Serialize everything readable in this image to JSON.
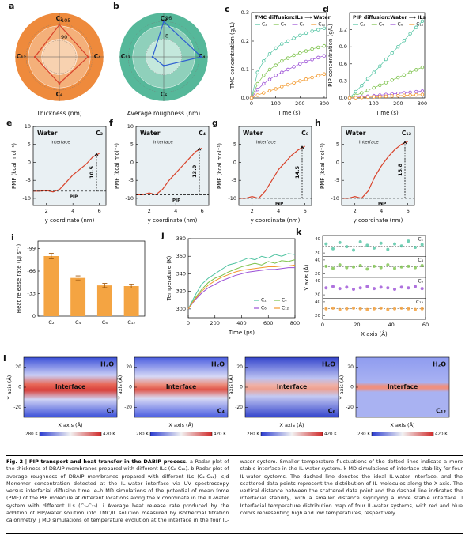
{
  "chart_data": [
    {
      "type": "radar",
      "panel_label": "a",
      "axes": [
        "C₂",
        "C₄",
        "C₆",
        "C₁₂"
      ],
      "rlim": [
        75,
        115
      ],
      "rticks": [
        90,
        105
      ],
      "xlabel": "Thickness (nm)",
      "ring_colors": [
        "#ee8a3c",
        "#f4b07a",
        "#f8d2b0"
      ],
      "series": [
        {
          "color": "#d9432b",
          "values": [
            104,
            101,
            99,
            97
          ]
        }
      ]
    },
    {
      "type": "radar",
      "panel_label": "b",
      "axes": [
        "C₂",
        "C₄",
        "C₆",
        "C₁₂"
      ],
      "rlim": [
        0,
        20
      ],
      "rticks": [
        8,
        16
      ],
      "xlabel": "Average roughness (nm)",
      "ring_colors": [
        "#56b89a",
        "#8fd0bb",
        "#c4e8dc"
      ],
      "series": [
        {
          "color": "#2f5fd0",
          "values": [
            16,
            17,
            4,
            5
          ]
        }
      ]
    },
    {
      "type": "line",
      "panel_label": "c",
      "title": "TMC diffusion:ILs ⟶ Water",
      "xlabel": "Time (s)",
      "ylabel": "TMC concentration (g/L)",
      "markers": true,
      "legend": "top",
      "xlim": [
        0,
        310
      ],
      "ylim": [
        0,
        0.3
      ],
      "xticks": [
        0,
        100,
        200,
        300
      ],
      "yticks": [
        {
          "value": 0,
          "label": "0.0"
        },
        0.1,
        0.2,
        0.3
      ],
      "x": [
        0,
        25,
        50,
        75,
        100,
        125,
        150,
        175,
        200,
        225,
        250,
        275,
        300
      ],
      "series": [
        {
          "name": "C₂",
          "color": "#4fc3a1",
          "values": [
            0,
            0.09,
            0.13,
            0.155,
            0.175,
            0.19,
            0.2,
            0.21,
            0.22,
            0.228,
            0.235,
            0.24,
            0.245
          ]
        },
        {
          "name": "C₄",
          "color": "#7cc24a",
          "values": [
            0,
            0.05,
            0.08,
            0.1,
            0.115,
            0.13,
            0.14,
            0.15,
            0.158,
            0.165,
            0.172,
            0.178,
            0.183
          ]
        },
        {
          "name": "C₆",
          "color": "#9b4fd6",
          "values": [
            0,
            0.03,
            0.05,
            0.065,
            0.08,
            0.09,
            0.1,
            0.11,
            0.12,
            0.128,
            0.135,
            0.142,
            0.148
          ]
        },
        {
          "name": "C₁₂",
          "color": "#f39a2f",
          "values": [
            0,
            0.01,
            0.018,
            0.025,
            0.032,
            0.04,
            0.047,
            0.053,
            0.06,
            0.066,
            0.072,
            0.078,
            0.084
          ]
        }
      ]
    },
    {
      "type": "line",
      "panel_label": "d",
      "title": "PIP diffusion:Water ⟶ ILs",
      "xlabel": "Time (s)",
      "ylabel": "PIP concentration (g/L)",
      "markers": true,
      "legend": "top",
      "xlim": [
        0,
        310
      ],
      "ylim": [
        0,
        1.5
      ],
      "xticks": [
        0,
        100,
        200,
        300
      ],
      "yticks": [
        {
          "value": 0,
          "label": "0.0"
        },
        0.3,
        0.6,
        0.9,
        1.2
      ],
      "x": [
        0,
        25,
        50,
        75,
        100,
        125,
        150,
        175,
        200,
        225,
        250,
        275,
        300
      ],
      "series": [
        {
          "name": "C₂",
          "color": "#4fc3a1",
          "values": [
            0,
            0.11,
            0.22,
            0.34,
            0.45,
            0.56,
            0.68,
            0.79,
            0.9,
            1.01,
            1.13,
            1.24,
            1.35
          ]
        },
        {
          "name": "C₄",
          "color": "#7cc24a",
          "values": [
            0,
            0.045,
            0.09,
            0.135,
            0.18,
            0.225,
            0.27,
            0.315,
            0.36,
            0.405,
            0.45,
            0.495,
            0.54
          ]
        },
        {
          "name": "C₆",
          "color": "#9b4fd6",
          "values": [
            0,
            0.01,
            0.02,
            0.03,
            0.04,
            0.05,
            0.06,
            0.07,
            0.08,
            0.09,
            0.1,
            0.11,
            0.12
          ]
        },
        {
          "name": "C₁₂",
          "color": "#f39a2f",
          "values": [
            0,
            0.005,
            0.01,
            0.015,
            0.02,
            0.025,
            0.03,
            0.035,
            0.04,
            0.045,
            0.05,
            0.055,
            0.06
          ]
        }
      ]
    },
    {
      "type": "pmf",
      "panel_label": "e",
      "label": "C₂",
      "water": "Water",
      "interface": "Interface",
      "pip": "PIP",
      "xlabel": "y coordinate (nm)",
      "ylabel": "PMF (kcal mol⁻¹)",
      "color": "#d9432b",
      "xlim": [
        1,
        6.5
      ],
      "ylim": [
        -12,
        10
      ],
      "xticks": [
        2,
        4,
        6
      ],
      "yticks": [
        -10,
        -5,
        0,
        5,
        10
      ],
      "baseline": -8,
      "barrier": 10.5,
      "x": [
        1,
        1.5,
        2,
        2.5,
        3,
        3.5,
        4,
        4.5,
        5,
        5.5,
        6
      ],
      "values": [
        -8,
        -8,
        -7.8,
        -8.2,
        -7.5,
        -5.5,
        -3.5,
        -2,
        -0.5,
        1.5,
        2.5
      ]
    },
    {
      "type": "pmf",
      "panel_label": "f",
      "label": "C₄",
      "water": "Water",
      "interface": "Interface",
      "pip": "PIP",
      "xlabel": "y coordinate (nm)",
      "ylabel": "PMF (kcal mol⁻¹)",
      "color": "#d9432b",
      "xlim": [
        1,
        6.5
      ],
      "ylim": [
        -12,
        10
      ],
      "xticks": [
        2,
        4,
        6
      ],
      "yticks": [
        -10,
        -5,
        0,
        5,
        10
      ],
      "baseline": -9,
      "barrier": 13,
      "barrier_label": "13.0",
      "x": [
        1,
        1.5,
        2,
        2.5,
        3,
        3.5,
        4,
        4.5,
        5,
        5.5,
        6
      ],
      "values": [
        -9,
        -9,
        -8.5,
        -9,
        -7.5,
        -5,
        -3,
        -1,
        1,
        3,
        4
      ]
    },
    {
      "type": "pmf",
      "panel_label": "g",
      "label": "C₆",
      "water": "Water",
      "interface": "Interface",
      "pip": "PIP",
      "xlabel": "y coordinate (nm)",
      "ylabel": "PMF (kcal mol⁻¹)",
      "color": "#d9432b",
      "xlim": [
        1,
        6.5
      ],
      "ylim": [
        -12,
        10
      ],
      "xticks": [
        2,
        4,
        6
      ],
      "yticks": [
        -10,
        -5,
        0,
        5
      ],
      "baseline": -10,
      "barrier": 14.5,
      "x": [
        1,
        1.5,
        2,
        2.5,
        3,
        3.5,
        4,
        4.5,
        5,
        5.5,
        6
      ],
      "values": [
        -10,
        -10,
        -9.5,
        -10,
        -8,
        -5,
        -2,
        0,
        2,
        3.5,
        4.5
      ]
    },
    {
      "type": "pmf",
      "panel_label": "h",
      "label": "C₁₂",
      "water": "Water",
      "interface": "Interface",
      "pip": "PIP",
      "xlabel": "y coordinate (nm)",
      "ylabel": "PMF (kcal mol⁻¹)",
      "color": "#d9432b",
      "xlim": [
        1,
        6.5
      ],
      "ylim": [
        -12,
        10
      ],
      "xticks": [
        2,
        4,
        6
      ],
      "yticks": [
        -10,
        -5,
        0,
        5
      ],
      "baseline": -10,
      "barrier": 15.8,
      "x": [
        1,
        1.5,
        2,
        2.5,
        3,
        3.5,
        4,
        4.5,
        5,
        5.5,
        6
      ],
      "values": [
        -10,
        -10,
        -9.5,
        -10,
        -8,
        -4,
        -1,
        1.5,
        3.5,
        5,
        5.8
      ]
    },
    {
      "type": "bar",
      "panel_label": "i",
      "ylabel": "Heat release rate (μJ s⁻¹)",
      "color": "#f4a442",
      "categories": [
        "C₂",
        "C₄",
        "C₆",
        "C₁₂"
      ],
      "values": [
        -88,
        -56,
        -45,
        -44
      ],
      "errors": [
        4,
        3,
        3,
        3
      ],
      "ylim": [
        0,
        -110
      ],
      "yticks": [
        0,
        -33,
        -66,
        -99
      ]
    },
    {
      "type": "line",
      "panel_label": "j",
      "xlabel": "Time (ps)",
      "ylabel": "Temperature (K)",
      "markers": false,
      "legend": "lower right",
      "xlim": [
        0,
        800
      ],
      "ylim": [
        290,
        380
      ],
      "xticks": [
        0,
        200,
        400,
        600,
        800
      ],
      "yticks": [
        300,
        320,
        340,
        360,
        380
      ],
      "x": [
        0,
        50,
        100,
        150,
        200,
        250,
        300,
        350,
        400,
        450,
        500,
        550,
        600,
        650,
        700,
        750,
        800
      ],
      "series": [
        {
          "name": "C₂",
          "color": "#4fc3a1",
          "values": [
            300,
            315,
            328,
            335,
            340,
            345,
            350,
            352,
            355,
            358,
            356,
            360,
            358,
            362,
            360,
            363,
            362
          ]
        },
        {
          "name": "C₄",
          "color": "#7cc24a",
          "values": [
            300,
            312,
            322,
            330,
            335,
            338,
            342,
            345,
            348,
            350,
            352,
            350,
            354,
            352,
            355,
            354,
            356
          ]
        },
        {
          "name": "C₆",
          "color": "#9b4fd6",
          "values": [
            300,
            310,
            318,
            324,
            328,
            332,
            335,
            338,
            340,
            342,
            343,
            344,
            345,
            345,
            346,
            347,
            347
          ]
        },
        {
          "name": "C₁₂",
          "color": "#f39a2f",
          "values": [
            300,
            311,
            320,
            327,
            332,
            336,
            339,
            342,
            344,
            345,
            346,
            347,
            348,
            348,
            349,
            349,
            350
          ]
        }
      ]
    },
    {
      "type": "stacked_scatter",
      "panel_label": "k",
      "xlabel": "X axis (Å)",
      "ylabel": "Y axis (Å)",
      "xlim": [
        0,
        60
      ],
      "xticks": [
        0,
        20,
        40,
        60
      ],
      "x": [
        2,
        6,
        10,
        14,
        18,
        22,
        26,
        30,
        34,
        38,
        42,
        46,
        50,
        54,
        58
      ],
      "series": [
        {
          "name": "C₂",
          "color": "#4fc3a1",
          "ylim": [
            15,
            45
          ],
          "yticks": [
            20,
            40
          ],
          "line": 30,
          "values": [
            33,
            26,
            35,
            29,
            24,
            36,
            31,
            27,
            34,
            25,
            33,
            30,
            37,
            28,
            32
          ]
        },
        {
          "name": "C₄",
          "color": "#7cc24a",
          "ylim": [
            15,
            45
          ],
          "yticks": [
            20,
            40
          ],
          "line": 30,
          "values": [
            31,
            28,
            33,
            29,
            30,
            32,
            27,
            31,
            29,
            33,
            28,
            30,
            31,
            29,
            32
          ]
        },
        {
          "name": "C₆",
          "color": "#9b4fd6",
          "ylim": [
            15,
            45
          ],
          "yticks": [
            20,
            40
          ],
          "line": 30,
          "values": [
            30,
            32,
            29,
            31,
            28,
            30,
            32,
            29,
            31,
            30,
            28,
            31,
            30,
            32,
            29
          ]
        },
        {
          "name": "C₁₂",
          "color": "#f39a2f",
          "ylim": [
            15,
            45
          ],
          "yticks": [
            20,
            40
          ],
          "line": 30,
          "values": [
            30,
            31,
            29,
            30,
            31,
            30,
            29,
            30,
            31,
            29,
            30,
            31,
            30,
            29,
            30
          ]
        }
      ]
    },
    {
      "type": "heatmap",
      "panel_label": "l",
      "label": "C₂",
      "water": "H₂O",
      "interface": "Interface",
      "xlabel": "X axis (Å)",
      "ylabel": "Y axis (Å)",
      "ylim": [
        -30,
        30
      ],
      "yticks": [
        -20,
        0,
        20
      ],
      "clim": [
        280,
        420
      ],
      "clim_labels": [
        "280 K",
        "420 K"
      ]
    },
    {
      "type": "heatmap",
      "label": "C₄",
      "water": "H₂O",
      "interface": "Interface",
      "xlabel": "X axis (Å)",
      "ylabel": "Y axis (Å)",
      "ylim": [
        -30,
        30
      ],
      "yticks": [
        -20,
        0,
        20
      ],
      "clim": [
        280,
        420
      ],
      "clim_labels": [
        "280 K",
        "420 K"
      ]
    },
    {
      "type": "heatmap",
      "label": "C₆",
      "water": "H₂O",
      "interface": "Interface",
      "xlabel": "X axis (Å)",
      "ylabel": "Y axis (Å)",
      "ylim": [
        -30,
        30
      ],
      "yticks": [
        -20,
        0,
        20
      ],
      "clim": [
        280,
        420
      ],
      "clim_labels": [
        "280 K",
        "420 K"
      ]
    },
    {
      "type": "heatmap",
      "label": "C₁₂",
      "water": "H₂O",
      "interface": "Interface",
      "xlabel": "X axis (Å)",
      "ylabel": "Y axis (Å)",
      "ylim": [
        -30,
        30
      ],
      "yticks": [
        -20,
        0,
        20
      ],
      "clim": [
        280,
        420
      ],
      "clim_labels": [
        "280 K",
        "420 K"
      ]
    }
  ],
  "caption": {
    "title": "Fig. 2 | PIP transport and heat transfer in the DABIP process.",
    "body": "a Radar plot of the thickness of DBAIP membranes prepared with different ILs (C₂-C₁₂). b Radar plot of average roughness of DBAIP membranes prepared with different ILs (C₂-C₁₂). c,d Monomer concentration detected at the IL–water interface via UV spectroscopy versus interfacial diffusion time. e–h MD simulations of the potential of mean force (PMF) of the PIP molecule at different locations along the x coordinate in the IL-water system with different ILs (C₂-C₁₂). i Average heat release rate produced by the addition of PIP/water solution into TMC/IL solution measured by isothermal titration calorimetry. j MD simulations of temperature evolution at the interface in the four IL-water system. Smaller temperature fluctuations of the dotted lines indicate a more stable interface in the IL-water system. k MD simulations of interface stability for four IL-water systems. The dashed line denotes the ideal IL-water interface, and the scattered data points represent the distribution of IL molecules along the X-axis. The vertical distance between the scattered data point and the dashed line indicates the interfacial stability, with a smaller distance signifying a more stable interface. l Interfacial temperature distribution map of four IL-water systems, with red and blue colors representing high and low temperatures, respectively."
  }
}
